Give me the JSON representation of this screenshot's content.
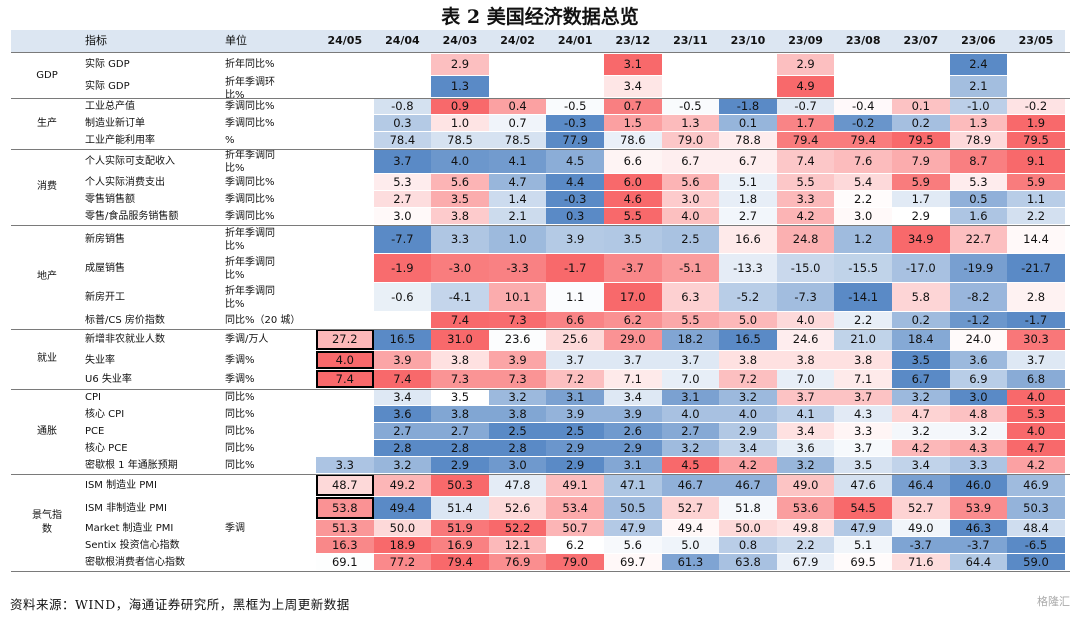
{
  "title": "表 2  美国经济数据总览",
  "header": {
    "indicator": "指标",
    "unit": "单位",
    "periods": [
      "24/05",
      "24/04",
      "24/03",
      "24/02",
      "24/01",
      "23/12",
      "23/11",
      "23/10",
      "23/09",
      "23/08",
      "23/07",
      "23/06",
      "23/05"
    ]
  },
  "groups": [
    {
      "name": "GDP",
      "from": 0,
      "to": 1
    },
    {
      "name": "生产",
      "from": 2,
      "to": 4
    },
    {
      "name": "消费",
      "from": 5,
      "to": 8
    },
    {
      "name": "地产",
      "from": 9,
      "to": 12
    },
    {
      "name": "就业",
      "from": 13,
      "to": 15
    },
    {
      "name": "通胀",
      "from": 16,
      "to": 20
    },
    {
      "name": "景气指\n数",
      "from": 21,
      "to": 25
    }
  ],
  "rows": [
    {
      "name": "实际 GDP",
      "unit": "折年同比%",
      "values": [
        "",
        "",
        "2.9",
        "",
        "",
        "3.1",
        "",
        "",
        "2.9",
        "",
        "",
        "2.4",
        ""
      ]
    },
    {
      "name": "实际 GDP",
      "unit": "折年季调环\n比%",
      "values": [
        "",
        "",
        "1.3",
        "",
        "",
        "3.4",
        "",
        "",
        "4.9",
        "",
        "",
        "2.1",
        ""
      ]
    },
    {
      "name": "工业总产值",
      "unit": "季调同比%",
      "values": [
        "",
        "-0.8",
        "0.9",
        "0.4",
        "-0.5",
        "0.7",
        "-0.5",
        "-1.8",
        "-0.7",
        "-0.4",
        "0.1",
        "-1.0",
        "-0.2"
      ]
    },
    {
      "name": "制造业新订单",
      "unit": "季调同比%",
      "values": [
        "",
        "0.3",
        "1.0",
        "0.7",
        "-0.3",
        "1.5",
        "1.3",
        "0.1",
        "1.7",
        "-0.2",
        "0.2",
        "1.3",
        "1.9"
      ]
    },
    {
      "name": "工业产能利用率",
      "unit": "%",
      "values": [
        "",
        "78.4",
        "78.5",
        "78.5",
        "77.9",
        "78.6",
        "79.0",
        "78.8",
        "79.4",
        "79.4",
        "79.5",
        "78.9",
        "79.5"
      ]
    },
    {
      "name": "个人实际可支配收入",
      "unit": "折年季调同\n比%",
      "values": [
        "",
        "3.7",
        "4.0",
        "4.1",
        "4.5",
        "6.6",
        "6.7",
        "6.7",
        "7.4",
        "7.6",
        "7.9",
        "8.7",
        "9.1"
      ]
    },
    {
      "name": "个人实际消费支出",
      "unit": "季调同比%",
      "values": [
        "",
        "5.3",
        "5.6",
        "4.7",
        "4.4",
        "6.0",
        "5.6",
        "5.1",
        "5.5",
        "5.4",
        "5.9",
        "5.3",
        "5.9"
      ]
    },
    {
      "name": "零售销售额",
      "unit": "季调同比%",
      "values": [
        "",
        "2.7",
        "3.5",
        "1.4",
        "-0.3",
        "4.6",
        "3.0",
        "1.8",
        "3.3",
        "2.2",
        "1.7",
        "0.5",
        "1.1"
      ]
    },
    {
      "name": "零售/食品服务销售额",
      "unit": "季调同比%",
      "values": [
        "",
        "3.0",
        "3.8",
        "2.1",
        "0.3",
        "5.5",
        "4.0",
        "2.7",
        "4.2",
        "3.0",
        "2.9",
        "1.6",
        "2.2"
      ]
    },
    {
      "name": "新房销售",
      "unit": "折年季调同\n比%",
      "values": [
        "",
        "-7.7",
        "3.3",
        "1.0",
        "3.9",
        "3.5",
        "2.5",
        "16.6",
        "24.8",
        "1.2",
        "34.9",
        "22.7",
        "14.4"
      ]
    },
    {
      "name": "成屋销售",
      "unit": "折年季调同\n比%",
      "values": [
        "",
        "-1.9",
        "-3.0",
        "-3.3",
        "-1.7",
        "-3.7",
        "-5.1",
        "-13.3",
        "-15.0",
        "-15.5",
        "-17.0",
        "-19.9",
        "-21.7"
      ]
    },
    {
      "name": "新房开工",
      "unit": "折年季调同\n比%",
      "values": [
        "",
        "-0.6",
        "-4.1",
        "10.1",
        "1.1",
        "17.0",
        "6.3",
        "-5.2",
        "-7.3",
        "-14.1",
        "5.8",
        "-8.2",
        "2.8"
      ]
    },
    {
      "name": "标普/CS 房价指数",
      "unit": "同比%（20 城）",
      "values": [
        "",
        "",
        "7.4",
        "7.3",
        "6.6",
        "6.2",
        "5.5",
        "5.0",
        "4.0",
        "2.2",
        "0.2",
        "-1.2",
        "-1.7"
      ]
    },
    {
      "name": "新增非农就业人数",
      "unit": "季调/万人",
      "values": [
        "27.2",
        "16.5",
        "31.0",
        "23.6",
        "25.6",
        "29.0",
        "18.2",
        "16.5",
        "24.6",
        "21.0",
        "18.4",
        "24.0",
        "30.3"
      ]
    },
    {
      "name": "失业率",
      "unit": "季调%",
      "values": [
        "4.0",
        "3.9",
        "3.8",
        "3.9",
        "3.7",
        "3.7",
        "3.7",
        "3.8",
        "3.8",
        "3.8",
        "3.5",
        "3.6",
        "3.7"
      ]
    },
    {
      "name": "U6 失业率",
      "unit": "季调%",
      "values": [
        "7.4",
        "7.4",
        "7.3",
        "7.3",
        "7.2",
        "7.1",
        "7.0",
        "7.2",
        "7.0",
        "7.1",
        "6.7",
        "6.9",
        "6.8"
      ]
    },
    {
      "name": "CPI",
      "unit": "同比%",
      "values": [
        "",
        "3.4",
        "3.5",
        "3.2",
        "3.1",
        "3.4",
        "3.1",
        "3.2",
        "3.7",
        "3.7",
        "3.2",
        "3.0",
        "4.0"
      ]
    },
    {
      "name": "核心 CPI",
      "unit": "同比%",
      "values": [
        "",
        "3.6",
        "3.8",
        "3.8",
        "3.9",
        "3.9",
        "4.0",
        "4.0",
        "4.1",
        "4.3",
        "4.7",
        "4.8",
        "5.3"
      ]
    },
    {
      "name": "PCE",
      "unit": "同比%",
      "values": [
        "",
        "2.7",
        "2.7",
        "2.5",
        "2.5",
        "2.6",
        "2.7",
        "2.9",
        "3.4",
        "3.3",
        "3.2",
        "3.2",
        "4.0"
      ]
    },
    {
      "name": "核心 PCE",
      "unit": "同比%",
      "values": [
        "",
        "2.8",
        "2.8",
        "2.8",
        "2.9",
        "2.9",
        "3.2",
        "3.4",
        "3.6",
        "3.7",
        "4.2",
        "4.3",
        "4.7"
      ]
    },
    {
      "name": "密歇根 1 年通胀预期",
      "unit": "同比%",
      "values": [
        "3.3",
        "3.2",
        "2.9",
        "3.0",
        "2.9",
        "3.1",
        "4.5",
        "4.2",
        "3.2",
        "3.5",
        "3.4",
        "3.3",
        "4.2"
      ]
    },
    {
      "name": "ISM 制造业 PMI",
      "unit": "",
      "values": [
        "48.7",
        "49.2",
        "50.3",
        "47.8",
        "49.1",
        "47.1",
        "46.7",
        "46.7",
        "49.0",
        "47.6",
        "46.4",
        "46.0",
        "46.9"
      ]
    },
    {
      "name": "ISM 非制造业 PMI",
      "unit": "",
      "values": [
        "53.8",
        "49.4",
        "51.4",
        "52.6",
        "53.4",
        "50.5",
        "52.7",
        "51.8",
        "53.6",
        "54.5",
        "52.7",
        "53.9",
        "50.3"
      ]
    },
    {
      "name": "Market 制造业 PMI",
      "unit": "季调",
      "values": [
        "51.3",
        "50.0",
        "51.9",
        "52.2",
        "50.7",
        "47.9",
        "49.4",
        "50.0",
        "49.8",
        "47.9",
        "49.0",
        "46.3",
        "48.4"
      ]
    },
    {
      "name": "Sentix 投资信心指数",
      "unit": "",
      "values": [
        "16.3",
        "18.9",
        "16.9",
        "12.1",
        "6.2",
        "5.6",
        "5.0",
        "0.8",
        "2.2",
        "5.1",
        "-3.7",
        "-3.7",
        "-6.5"
      ]
    },
    {
      "name": "密歇根消费者信心指数",
      "unit": "",
      "values": [
        "69.1",
        "77.2",
        "79.4",
        "76.9",
        "79.0",
        "69.7",
        "61.3",
        "63.8",
        "67.9",
        "69.5",
        "71.6",
        "64.4",
        "59.0"
      ]
    }
  ],
  "colors": {
    "high": "#f8696b",
    "low": "#5a8ac6",
    "mid": "#ffffff",
    "header": "#dce6f2"
  },
  "highlighted_rows": [
    13,
    14,
    15,
    21,
    22
  ],
  "source": "资料来源：WIND，海通证券研究所，黑框为上周更新数据",
  "watermark": "格隆汇"
}
